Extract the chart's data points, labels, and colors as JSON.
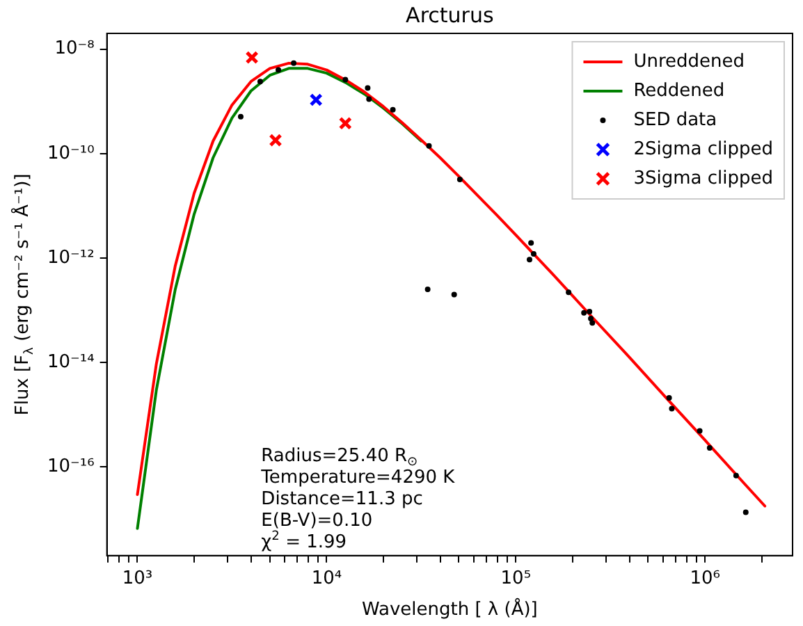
{
  "chart_data": {
    "type": "line",
    "title": "Arcturus",
    "xlabel": "Wavelength [ λ (Å)]",
    "ylabel": "Flux [F$_{λ}$ (erg cm⁻² s⁻¹ Å⁻¹)]",
    "log": "xy",
    "grid": false,
    "legend": "top right",
    "xlim": [
      690,
      2900000
    ],
    "ylim": [
      2e-18,
      2e-08
    ],
    "xticks": [
      {
        "value": 700,
        "label": null
      },
      {
        "value": 800,
        "label": null
      },
      {
        "value": 900,
        "label": null
      },
      {
        "value": 1000,
        "label": "10³"
      },
      {
        "value": 2000,
        "label": null
      },
      {
        "value": 3000,
        "label": null
      },
      {
        "value": 4000,
        "label": null
      },
      {
        "value": 5000,
        "label": null
      },
      {
        "value": 6000,
        "label": null
      },
      {
        "value": 7000,
        "label": null
      },
      {
        "value": 8000,
        "label": null
      },
      {
        "value": 9000,
        "label": null
      },
      {
        "value": 10000,
        "label": "10⁴"
      },
      {
        "value": 20000,
        "label": null
      },
      {
        "value": 30000,
        "label": null
      },
      {
        "value": 40000,
        "label": null
      },
      {
        "value": 50000,
        "label": null
      },
      {
        "value": 60000,
        "label": null
      },
      {
        "value": 70000,
        "label": null
      },
      {
        "value": 80000,
        "label": null
      },
      {
        "value": 90000,
        "label": null
      },
      {
        "value": 100000,
        "label": "10⁵"
      },
      {
        "value": 200000,
        "label": null
      },
      {
        "value": 300000,
        "label": null
      },
      {
        "value": 400000,
        "label": null
      },
      {
        "value": 500000,
        "label": null
      },
      {
        "value": 600000,
        "label": null
      },
      {
        "value": 700000,
        "label": null
      },
      {
        "value": 800000,
        "label": null
      },
      {
        "value": 900000,
        "label": null
      },
      {
        "value": 1000000,
        "label": "10⁶"
      },
      {
        "value": 2000000,
        "label": null
      }
    ],
    "yticks": [
      {
        "value": 1e-16,
        "label": "10⁻¹⁶"
      },
      {
        "value": 1e-14,
        "label": "10⁻¹⁴"
      },
      {
        "value": 1e-12,
        "label": "10⁻¹²"
      },
      {
        "value": 1e-10,
        "label": "10⁻¹⁰"
      },
      {
        "value": 1e-08,
        "label": "10⁻⁸"
      }
    ],
    "annotations": [
      "Radius=25.40 R$_{⊙}$",
      "Temperature=4290 K",
      "Distance=11.3 pc",
      "E(B-V)=0.10",
      "χ$^{2}$ = 1.99"
    ],
    "series": [
      {
        "name": "Unreddened",
        "marker": "none",
        "color": "#ff0000",
        "x": [
          1000,
          1259,
          1585,
          1995,
          2512,
          3162,
          3981,
          5012,
          6310,
          7943,
          10000,
          12589,
          15849,
          19953,
          25119,
          31623,
          39811,
          50119,
          63096,
          79433,
          100000,
          158489,
          251189,
          398107,
          630957,
          1000000,
          1584893,
          2070000
        ],
        "values": [
          2.95e-17,
          9.33e-15,
          7.08e-13,
          1.74e-11,
          1.74e-10,
          8.51e-10,
          2.4e-09,
          4.27e-09,
          5.37e-09,
          5.13e-09,
          3.98e-09,
          2.57e-09,
          1.51e-09,
          7.94e-10,
          3.89e-10,
          1.82e-10,
          8.32e-11,
          3.63e-11,
          1.55e-11,
          6.61e-12,
          2.75e-12,
          4.68e-13,
          7.59e-14,
          1.26e-14,
          2e-15,
          3.24e-16,
          5.13e-17,
          1.78e-17
        ]
      },
      {
        "name": "Reddened",
        "marker": "none",
        "color": "#008000",
        "x": [
          1000,
          1259,
          1585,
          1995,
          2512,
          3162,
          3981,
          5012,
          6310,
          7943,
          10000,
          12589,
          15849,
          19953,
          25119,
          31623
        ],
        "values": [
          6.61e-18,
          2.95e-15,
          2.51e-13,
          6.92e-12,
          8.32e-11,
          4.79e-10,
          1.58e-09,
          3.16e-09,
          4.27e-09,
          4.27e-09,
          3.47e-09,
          2.29e-09,
          1.38e-09,
          7.41e-10,
          3.72e-10,
          1.74e-10
        ]
      },
      {
        "name": "SED data",
        "type": "scatter",
        "marker": "circle",
        "color": "#000000",
        "x": [
          3516,
          4456,
          5559,
          6699,
          12560,
          16480,
          16750,
          22390,
          34750,
          50600,
          34200,
          47200,
          120300,
          118100,
          124200,
          190000,
          229000,
          245000,
          249000,
          253600,
          645700,
          667000,
          937000,
          1057000,
          1459000,
          1641000
        ],
        "values": [
          5.1e-10,
          2.4e-09,
          4e-09,
          5.4e-09,
          2.6e-09,
          1.8e-09,
          1.1e-09,
          6.9e-10,
          1.4e-10,
          3.2e-11,
          2.5e-13,
          2e-13,
          1.95e-12,
          9.3e-13,
          1.2e-12,
          2.2e-13,
          8.9e-14,
          9.4e-14,
          6.9e-14,
          5.7e-14,
          2.1e-15,
          1.3e-15,
          4.9e-16,
          2.3e-16,
          6.8e-17,
          1.35e-17
        ]
      },
      {
        "name": "2Sigma clipped",
        "type": "scatter",
        "marker": "cross",
        "color": "#0000ff",
        "x": [
          8790
        ],
        "values": [
          1.07e-09
        ]
      },
      {
        "name": "3Sigma clipped",
        "type": "scatter",
        "marker": "cross",
        "color": "#ff0000",
        "x": [
          4030,
          5370,
          12560
        ],
        "values": [
          6.9e-09,
          1.8e-10,
          3.8e-10
        ]
      }
    ]
  }
}
